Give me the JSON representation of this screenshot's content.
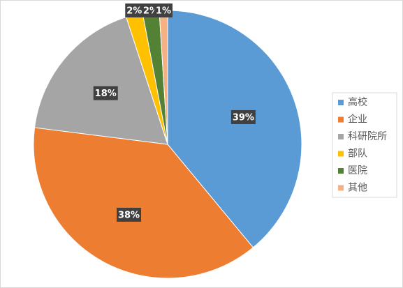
{
  "chart_data": {
    "type": "pie",
    "categories": [
      "高校",
      "企业",
      "科研院所",
      "部队",
      "医院",
      "其他"
    ],
    "values": [
      39,
      38,
      18,
      2,
      2,
      1
    ],
    "value_labels": [
      "39%",
      "38%",
      "18%",
      "2%",
      "2%",
      "1%"
    ],
    "colors": [
      "#5b9bd5",
      "#ed7d31",
      "#a5a5a5",
      "#ffc000",
      "#548235",
      "#f4b183"
    ],
    "legend": "right"
  }
}
